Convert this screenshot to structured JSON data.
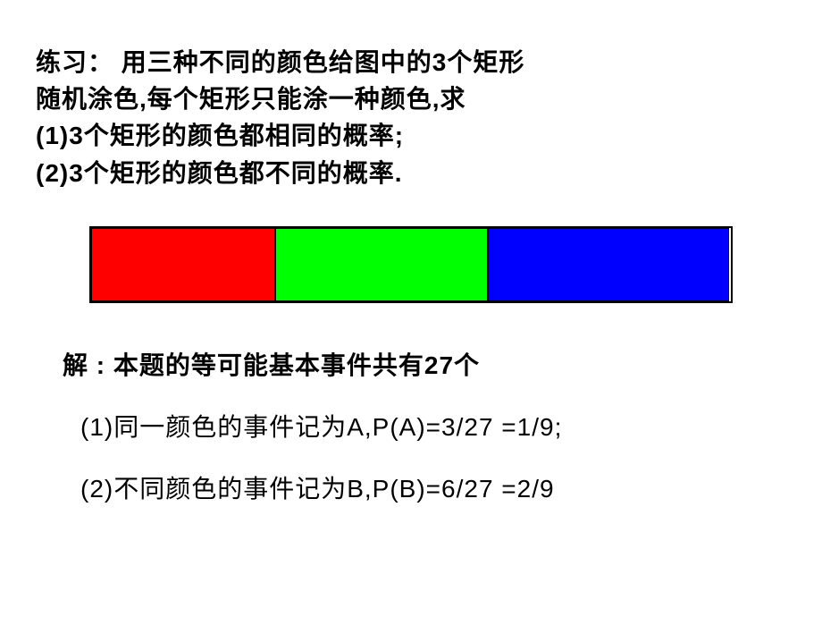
{
  "problem": {
    "line1": "练习：  用三种不同的颜色给图中的3个矩形",
    "line2": "随机涂色,每个矩形只能涂一种颜色,求",
    "line3": "(1)3个矩形的颜色都相同的概率;",
    "line4": "(2)3个矩形的颜色都不同的概率."
  },
  "rectangles": {
    "colors": [
      "#ff0000",
      "#00ff00",
      "#0000ff"
    ],
    "border_color": "#000000"
  },
  "solution": {
    "header": "解 :  本题的等可能基本事件共有27个",
    "line1": "(1)同一颜色的事件记为A,P(A)=3/27 =1/9;",
    "line2": "(2)不同颜色的事件记为B,P(B)=6/27 =2/9"
  },
  "styling": {
    "background_color": "#ffffff",
    "text_color": "#000000",
    "font_size_main": 28,
    "font_weight_problem": "bold"
  }
}
